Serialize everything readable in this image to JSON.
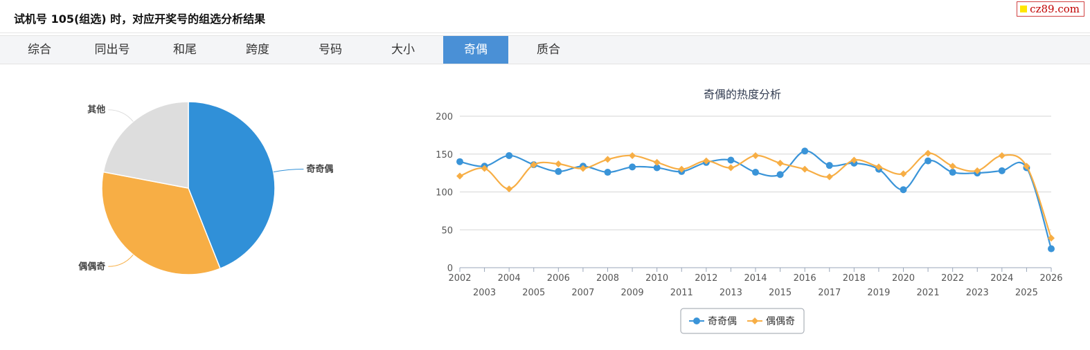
{
  "header": {
    "title": "试机号 105(组选) 时，对应开奖号的组选分析结果"
  },
  "badge": {
    "text": "cz89.com",
    "square_color": "#ffe600",
    "text_color": "#c00000"
  },
  "tabs": [
    {
      "label": "综合",
      "active": false
    },
    {
      "label": "同出号",
      "active": false
    },
    {
      "label": "和尾",
      "active": false
    },
    {
      "label": "跨度",
      "active": false
    },
    {
      "label": "号码",
      "active": false
    },
    {
      "label": "大小",
      "active": false
    },
    {
      "label": "奇偶",
      "active": true
    },
    {
      "label": "质合",
      "active": false
    }
  ],
  "chart_data": [
    {
      "type": "pie",
      "title": "",
      "slices": [
        {
          "label": "奇奇偶",
          "value": 44,
          "color": "#3090d8"
        },
        {
          "label": "偶偶奇",
          "value": 34,
          "color": "#f7ae45"
        },
        {
          "label": "其他",
          "value": 22,
          "color": "#dddddd"
        }
      ]
    },
    {
      "type": "line",
      "title": "奇偶的热度分析",
      "xlabel": "",
      "ylabel": "",
      "x": [
        "2002",
        "2003",
        "2004",
        "2005",
        "2006",
        "2007",
        "2008",
        "2009",
        "2010",
        "2011",
        "2012",
        "2013",
        "2014",
        "2015",
        "2016",
        "2017",
        "2018",
        "2019",
        "2020",
        "2021",
        "2022",
        "2023",
        "2024",
        "2025",
        "2026"
      ],
      "ylim": [
        0,
        200
      ],
      "yticks": [
        0,
        50,
        100,
        150,
        200
      ],
      "grid": true,
      "legend": "bottom-center",
      "series": [
        {
          "name": "奇奇偶",
          "color": "#3a94d8",
          "marker": "circle",
          "values": [
            140,
            134,
            148,
            136,
            127,
            134,
            126,
            133,
            132,
            127,
            139,
            142,
            126,
            123,
            154,
            135,
            138,
            130,
            103,
            141,
            126,
            125,
            128,
            132,
            25
          ]
        },
        {
          "name": "偶偶奇",
          "color": "#f7ae45",
          "marker": "diamond",
          "values": [
            121,
            131,
            104,
            136,
            137,
            131,
            143,
            148,
            139,
            130,
            141,
            132,
            148,
            138,
            130,
            120,
            142,
            133,
            124,
            151,
            134,
            128,
            148,
            134,
            39
          ]
        }
      ]
    }
  ]
}
